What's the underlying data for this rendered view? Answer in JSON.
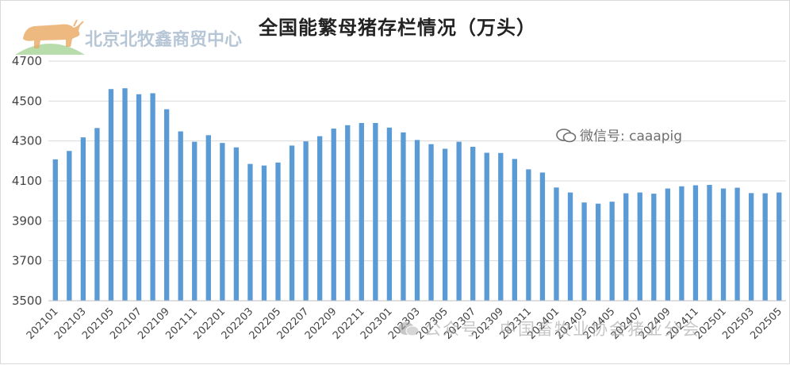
{
  "watermarks": {
    "brand_text": "北京北牧鑫商贸中心",
    "wechat_text": "微信号: caaapig",
    "official_text": "公众号 · 中国畜牧业协会猪业分会"
  },
  "colors": {
    "bar": "#5b9bd5",
    "grid": "#d9d9d9",
    "axis": "#bfbfbf"
  },
  "chart_data": {
    "type": "bar",
    "title": "全国能繁母猪存栏情况（万头）",
    "xlabel": "",
    "ylabel": "",
    "ylim": [
      3500,
      4700
    ],
    "yticks": [
      3500,
      3700,
      3900,
      4100,
      4300,
      4500,
      4700
    ],
    "grid": true,
    "categories": [
      "202101",
      "202102",
      "202103",
      "202104",
      "202105",
      "202106",
      "202107",
      "202108",
      "202109",
      "202110",
      "202111",
      "202112",
      "202201",
      "202202",
      "202203",
      "202204",
      "202205",
      "202206",
      "202207",
      "202208",
      "202209",
      "202210",
      "202211",
      "202212",
      "202301",
      "202302",
      "202303",
      "202304",
      "202305",
      "202306",
      "202307",
      "202308",
      "202309",
      "202310",
      "202311",
      "202312",
      "202401",
      "202402",
      "202403",
      "202404",
      "202405",
      "202406",
      "202407",
      "202408",
      "202409",
      "202410",
      "202411",
      "202412",
      "202501",
      "202502",
      "202503",
      "202504",
      "202505"
    ],
    "tick_labels": [
      "202101",
      "202103",
      "202105",
      "202107",
      "202109",
      "202111",
      "202201",
      "202203",
      "202205",
      "202207",
      "202209",
      "202211",
      "202301",
      "202303",
      "202305",
      "202307",
      "202309",
      "202311",
      "202401",
      "202403",
      "202405",
      "202407",
      "202409",
      "202411",
      "202501",
      "202503",
      "202505"
    ],
    "values": [
      4208,
      4250,
      4318,
      4365,
      4560,
      4564,
      4534,
      4539,
      4459,
      4348,
      4296,
      4329,
      4290,
      4268,
      4185,
      4177,
      4192,
      4277,
      4298,
      4324,
      4362,
      4379,
      4390,
      4390,
      4367,
      4343,
      4305,
      4284,
      4261,
      4296,
      4271,
      4241,
      4240,
      4210,
      4158,
      4142,
      4067,
      4042,
      3992,
      3986,
      3996,
      4038,
      4042,
      4036,
      4062,
      4073,
      4078,
      4080,
      4062,
      4066,
      4039,
      4038,
      4042
    ]
  }
}
